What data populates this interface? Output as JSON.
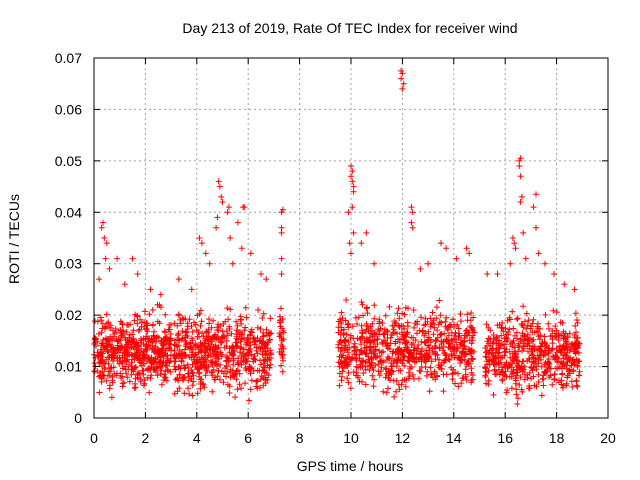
{
  "chart_data": {
    "type": "scatter",
    "title": "Day 213 of 2019, Rate Of TEC Index for receiver wind",
    "xlabel": "GPS time / hours",
    "ylabel": "ROTI / TECUs",
    "xlim": [
      0,
      20
    ],
    "ylim": [
      0,
      0.07
    ],
    "x_ticks": [
      0,
      2,
      4,
      6,
      8,
      10,
      12,
      14,
      16,
      18,
      20
    ],
    "x_tick_labels": [
      "0",
      "2",
      "4",
      "6",
      "8",
      "10",
      "12",
      "14",
      "16",
      "18",
      "20"
    ],
    "y_ticks": [
      0,
      0.01,
      0.02,
      0.03,
      0.04,
      0.05,
      0.06,
      0.07
    ],
    "y_tick_labels": [
      "0",
      "0.01",
      "0.02",
      "0.03",
      "0.04",
      "0.05",
      "0.06",
      "0.07"
    ],
    "grid": true,
    "marker": "+",
    "color": "#ff0000",
    "series": [
      {
        "name": "ROTI",
        "clusters": [
          {
            "x": [
              0.0,
              3.0
            ],
            "y": [
              0.003,
              0.022
            ],
            "n": 500
          },
          {
            "x": [
              3.1,
              6.9
            ],
            "y": [
              0.002,
              0.022
            ],
            "n": 550
          },
          {
            "x": [
              9.5,
              14.8
            ],
            "y": [
              0.003,
              0.023
            ],
            "n": 700
          },
          {
            "x": [
              15.2,
              18.9
            ],
            "y": [
              0.002,
              0.022
            ],
            "n": 520
          },
          {
            "x": [
              7.2,
              7.4
            ],
            "y": [
              0.006,
              0.024
            ],
            "n": 30
          }
        ],
        "points": [
          [
            0.3,
            0.037
          ],
          [
            0.35,
            0.038
          ],
          [
            0.4,
            0.035
          ],
          [
            0.5,
            0.034
          ],
          [
            0.45,
            0.031
          ],
          [
            0.2,
            0.027
          ],
          [
            0.6,
            0.029
          ],
          [
            0.9,
            0.031
          ],
          [
            1.5,
            0.031
          ],
          [
            1.7,
            0.028
          ],
          [
            1.2,
            0.026
          ],
          [
            2.6,
            0.024
          ],
          [
            2.2,
            0.025
          ],
          [
            3.3,
            0.027
          ],
          [
            3.8,
            0.025
          ],
          [
            4.1,
            0.035
          ],
          [
            4.2,
            0.034
          ],
          [
            4.35,
            0.032
          ],
          [
            4.5,
            0.03
          ],
          [
            4.85,
            0.046
          ],
          [
            4.9,
            0.045
          ],
          [
            4.95,
            0.043
          ],
          [
            5.0,
            0.042
          ],
          [
            4.8,
            0.039
          ],
          [
            4.75,
            0.037
          ],
          [
            5.2,
            0.04
          ],
          [
            5.25,
            0.041
          ],
          [
            5.3,
            0.035
          ],
          [
            5.4,
            0.03
          ],
          [
            5.6,
            0.038
          ],
          [
            5.75,
            0.033
          ],
          [
            5.8,
            0.041
          ],
          [
            5.85,
            0.041
          ],
          [
            6.1,
            0.032
          ],
          [
            6.5,
            0.028
          ],
          [
            6.7,
            0.027
          ],
          [
            7.3,
            0.04
          ],
          [
            7.35,
            0.0405
          ],
          [
            7.3,
            0.037
          ],
          [
            7.3,
            0.036
          ],
          [
            7.3,
            0.031
          ],
          [
            7.3,
            0.028
          ],
          [
            10.0,
            0.049
          ],
          [
            10.05,
            0.048
          ],
          [
            10.0,
            0.047
          ],
          [
            10.05,
            0.046
          ],
          [
            10.1,
            0.045
          ],
          [
            10.1,
            0.044
          ],
          [
            9.9,
            0.04
          ],
          [
            10.05,
            0.041
          ],
          [
            10.1,
            0.036
          ],
          [
            9.95,
            0.034
          ],
          [
            10.0,
            0.032
          ],
          [
            10.4,
            0.034
          ],
          [
            10.6,
            0.036
          ],
          [
            10.9,
            0.03
          ],
          [
            11.95,
            0.0675
          ],
          [
            12.0,
            0.067
          ],
          [
            11.95,
            0.066
          ],
          [
            12.05,
            0.065
          ],
          [
            12.0,
            0.064
          ],
          [
            12.35,
            0.041
          ],
          [
            12.4,
            0.04
          ],
          [
            12.35,
            0.038
          ],
          [
            12.4,
            0.037
          ],
          [
            13.5,
            0.034
          ],
          [
            13.7,
            0.033
          ],
          [
            14.1,
            0.031
          ],
          [
            14.5,
            0.033
          ],
          [
            14.6,
            0.032
          ],
          [
            13.0,
            0.03
          ],
          [
            12.7,
            0.029
          ],
          [
            15.3,
            0.028
          ],
          [
            15.7,
            0.028
          ],
          [
            16.3,
            0.035
          ],
          [
            16.35,
            0.034
          ],
          [
            16.4,
            0.033
          ],
          [
            16.2,
            0.03
          ],
          [
            16.55,
            0.05
          ],
          [
            16.6,
            0.0505
          ],
          [
            16.55,
            0.049
          ],
          [
            16.6,
            0.047
          ],
          [
            16.65,
            0.043
          ],
          [
            16.6,
            0.042
          ],
          [
            16.7,
            0.036
          ],
          [
            16.8,
            0.031
          ],
          [
            17.2,
            0.0435
          ],
          [
            17.1,
            0.041
          ],
          [
            17.2,
            0.037
          ],
          [
            17.3,
            0.032
          ],
          [
            17.55,
            0.03
          ],
          [
            17.9,
            0.028
          ],
          [
            18.3,
            0.026
          ],
          [
            18.7,
            0.025
          ]
        ]
      }
    ]
  }
}
